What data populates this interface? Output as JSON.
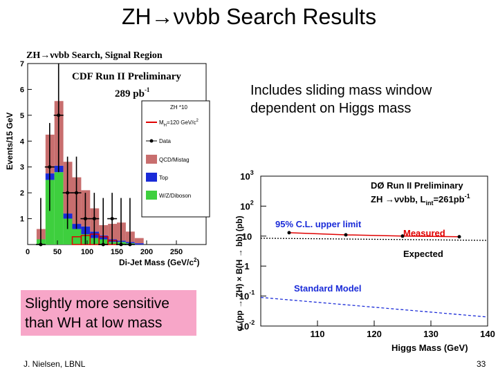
{
  "slide": {
    "title": "ZH→ννbb Search Results",
    "note_top_line1": "Includes sliding mass window",
    "note_top_line2": "dependent on Higgs mass",
    "note_box_line1": "Slightly more sensitive",
    "note_box_line2": "than WH at low mass",
    "footer_left": "J. Nielsen, LBNL",
    "footer_right": "33"
  },
  "chart_data": [
    {
      "type": "bar",
      "title": "ZH→ννbb Search, Signal Region",
      "label_line1": "CDF Run II Preliminary",
      "label_line2": "289 pb",
      "label_line2_sup": "-1",
      "xlabel": "Di-Jet Mass (GeV/c",
      "xlabel_sup": "2",
      "xlabel_end": ")",
      "ylabel": "Events/15 GeV",
      "xlim": [
        0,
        300
      ],
      "ylim": [
        0,
        7
      ],
      "x_ticks": [
        "0",
        "50",
        "100",
        "150",
        "200",
        "250"
      ],
      "x_tick_values": [
        0,
        50,
        100,
        150,
        200,
        250
      ],
      "y_ticks": [
        "1",
        "2",
        "3",
        "4",
        "5",
        "6",
        "7"
      ],
      "y_tick_values": [
        1,
        2,
        3,
        4,
        5,
        6,
        7
      ],
      "bins": [
        {
          "lo": 15,
          "hi": 30,
          "wz": 0.2,
          "top": 0.0,
          "qcd": 0.4
        },
        {
          "lo": 30,
          "hi": 45,
          "wz": 2.5,
          "top": 0.25,
          "qcd": 1.5
        },
        {
          "lo": 45,
          "hi": 60,
          "wz": 2.8,
          "top": 0.25,
          "qcd": 2.5
        },
        {
          "lo": 60,
          "hi": 75,
          "wz": 1.0,
          "top": 0.2,
          "qcd": 2.0
        },
        {
          "lo": 75,
          "hi": 90,
          "wz": 0.6,
          "top": 0.2,
          "qcd": 1.8
        },
        {
          "lo": 90,
          "hi": 105,
          "wz": 0.4,
          "top": 0.3,
          "qcd": 1.4
        },
        {
          "lo": 105,
          "hi": 120,
          "wz": 0.25,
          "top": 0.25,
          "qcd": 0.9
        },
        {
          "lo": 120,
          "hi": 135,
          "wz": 0.2,
          "top": 0.15,
          "qcd": 0.4
        },
        {
          "lo": 135,
          "hi": 150,
          "wz": 0.1,
          "top": 0.1,
          "qcd": 0.6
        },
        {
          "lo": 150,
          "hi": 165,
          "wz": 0.1,
          "top": 0.05,
          "qcd": 0.7
        },
        {
          "lo": 165,
          "hi": 180,
          "wz": 0.05,
          "top": 0.05,
          "qcd": 0.4
        },
        {
          "lo": 180,
          "hi": 195,
          "wz": 0.0,
          "top": 0.05,
          "qcd": 0.2
        }
      ],
      "signal": [
        {
          "lo": 75,
          "hi": 90,
          "v": 0.3
        },
        {
          "lo": 90,
          "hi": 105,
          "v": 0.35
        },
        {
          "lo": 105,
          "hi": 120,
          "v": 0.4
        },
        {
          "lo": 120,
          "hi": 135,
          "v": 0.3
        },
        {
          "lo": 135,
          "hi": 150,
          "v": 0.15
        }
      ],
      "data_points": [
        {
          "x": 22,
          "y": 0,
          "err": 1.8
        },
        {
          "x": 37,
          "y": 3,
          "err": 1.7
        },
        {
          "x": 52,
          "y": 5,
          "err": 2.2
        },
        {
          "x": 67,
          "y": 2,
          "err": 1.4
        },
        {
          "x": 82,
          "y": 2,
          "err": 1.4
        },
        {
          "x": 97,
          "y": 1,
          "err": 1.0
        },
        {
          "x": 112,
          "y": 1,
          "err": 1.0
        },
        {
          "x": 127,
          "y": 0,
          "err": 1.8
        },
        {
          "x": 142,
          "y": 1,
          "err": 1.0
        },
        {
          "x": 157,
          "y": 0,
          "err": 1.8
        },
        {
          "x": 172,
          "y": 0,
          "err": 1.8
        }
      ],
      "legend": [
        {
          "name": "ZH *10",
          "sub": "",
          "kind": "title"
        },
        {
          "name": "M",
          "sub": "H",
          "extra": "=120 GeV/c",
          "sup": "2",
          "kind": "line",
          "color": "#e00000"
        },
        {
          "name": "Data",
          "kind": "point",
          "color": "#000000"
        },
        {
          "name": "QCD/Mistag",
          "kind": "box",
          "color": "#c86e6e"
        },
        {
          "name": "Top",
          "kind": "box",
          "color": "#1a2bd8"
        },
        {
          "name": "W/Z/Diboson",
          "kind": "box",
          "color": "#3ecf3e"
        }
      ],
      "colors": {
        "qcd": "#c86e6e",
        "top": "#1a2bd8",
        "wz": "#3ecf3e",
        "signal": "#e00000",
        "data": "#000000"
      }
    },
    {
      "type": "line",
      "label_line1": "DØ Run II  Preliminary",
      "label_line2a": "ZH →ννbb, L",
      "label_line2_sub": "int",
      "label_line2b": "=261pb",
      "label_line2_sup": "-1",
      "label_cl": "95% C.L. upper limit",
      "label_measured": "Measured",
      "label_expected": "Expected",
      "label_sm": "Standard Model",
      "xlabel": "Higgs Mass (GeV)",
      "ylabel": "σ (pp → ZH) × B(H → bb) (pb)",
      "xlim": [
        100,
        140
      ],
      "ylim_log10": [
        -2,
        3
      ],
      "log_y": true,
      "x_ticks": [
        "110",
        "120",
        "130",
        "140"
      ],
      "x_tick_values": [
        110,
        120,
        130,
        140
      ],
      "y_ticks": [
        {
          "base": "10",
          "exp": "3",
          "log": 3
        },
        {
          "base": "10",
          "exp": "2",
          "log": 2
        },
        {
          "base": "10",
          "exp": "",
          "log": 1
        },
        {
          "base": "1",
          "exp": "",
          "log": 0
        },
        {
          "base": "10",
          "exp": "-1",
          "log": -1
        },
        {
          "base": "10",
          "exp": "-2",
          "log": -2
        }
      ],
      "series": [
        {
          "name": "Measured",
          "x": [
            105,
            115,
            125,
            135
          ],
          "y": [
            13,
            11,
            10,
            9.5
          ],
          "color": "#e00000"
        },
        {
          "name": "Expected",
          "x": [
            100,
            140
          ],
          "y": [
            8.5,
            7.2
          ],
          "color": "#000000"
        },
        {
          "name": "Standard Model",
          "x": [
            100,
            140
          ],
          "y": [
            0.09,
            0.02
          ],
          "color": "#1a2bd8"
        }
      ],
      "colors": {
        "measured": "#e00000",
        "expected": "#000000",
        "sm": "#1a2bd8",
        "label_cl": "#1a2bd8"
      }
    }
  ]
}
